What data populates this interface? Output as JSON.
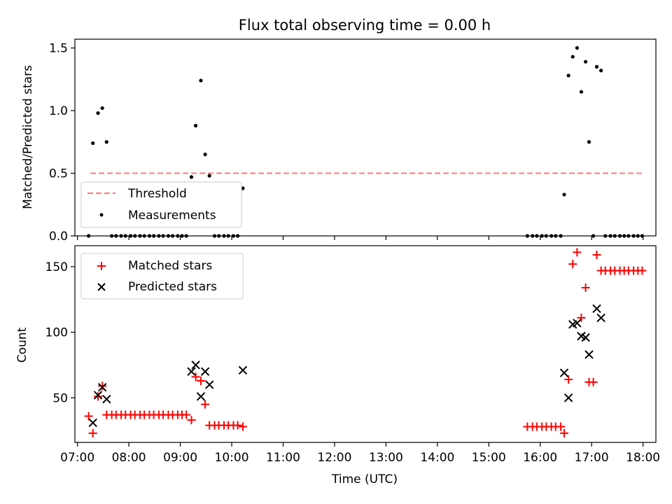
{
  "figure": {
    "title": "Flux total observing time = 0.00 h"
  },
  "chart_data": [
    {
      "type": "scatter",
      "ylabel": "Matched/Predicted stars",
      "ylim": [
        0,
        1.57
      ],
      "yticks": [
        "0.0",
        "0.5",
        "1.0",
        "1.5"
      ],
      "xlim": [
        "06:57",
        "18:15"
      ],
      "x_tick_times": [
        "07:00",
        "08:00",
        "09:00",
        "10:00",
        "11:00",
        "12:00",
        "13:00",
        "14:00",
        "15:00",
        "16:00",
        "17:00",
        "18:00"
      ],
      "x_tick_labels_shown": false,
      "grid": false,
      "legend_position": "lower-left",
      "threshold": {
        "name": "Threshold",
        "value": 0.5,
        "x_range": [
          "07:15",
          "18:00"
        ],
        "color": "#ff7777",
        "style": "dashed"
      },
      "series": [
        {
          "name": "Measurements",
          "marker": "dot",
          "color": "#000000",
          "points": [
            [
              "07:13",
              0.0
            ],
            [
              "07:18",
              0.74
            ],
            [
              "07:24",
              0.98
            ],
            [
              "07:29",
              1.02
            ],
            [
              "07:34",
              0.75
            ],
            [
              "07:40",
              0.0
            ],
            [
              "07:45",
              0.0
            ],
            [
              "07:51",
              0.0
            ],
            [
              "07:56",
              0.0
            ],
            [
              "08:02",
              0.0
            ],
            [
              "08:07",
              0.0
            ],
            [
              "08:13",
              0.0
            ],
            [
              "08:18",
              0.0
            ],
            [
              "08:24",
              0.0
            ],
            [
              "08:29",
              0.0
            ],
            [
              "08:35",
              0.0
            ],
            [
              "08:40",
              0.0
            ],
            [
              "08:46",
              0.0
            ],
            [
              "08:51",
              0.0
            ],
            [
              "08:57",
              0.0
            ],
            [
              "09:02",
              0.0
            ],
            [
              "09:07",
              0.0
            ],
            [
              "09:13",
              0.47
            ],
            [
              "09:18",
              0.88
            ],
            [
              "09:24",
              1.24
            ],
            [
              "09:29",
              0.65
            ],
            [
              "09:34",
              0.48
            ],
            [
              "09:40",
              0.0
            ],
            [
              "09:45",
              0.0
            ],
            [
              "09:51",
              0.0
            ],
            [
              "09:56",
              0.0
            ],
            [
              "10:02",
              0.0
            ],
            [
              "10:07",
              0.0
            ],
            [
              "10:13",
              0.38
            ],
            [
              "15:45",
              0.0
            ],
            [
              "15:51",
              0.0
            ],
            [
              "15:56",
              0.0
            ],
            [
              "16:02",
              0.0
            ],
            [
              "16:07",
              0.0
            ],
            [
              "16:13",
              0.0
            ],
            [
              "16:18",
              0.0
            ],
            [
              "16:24",
              0.0
            ],
            [
              "16:28",
              0.33
            ],
            [
              "16:33",
              1.28
            ],
            [
              "16:38",
              1.43
            ],
            [
              "16:43",
              1.5
            ],
            [
              "16:48",
              1.15
            ],
            [
              "16:53",
              1.39
            ],
            [
              "16:57",
              0.75
            ],
            [
              "17:02",
              0.0
            ],
            [
              "17:06",
              1.35
            ],
            [
              "17:11",
              1.32
            ],
            [
              "17:16",
              0.0
            ],
            [
              "17:22",
              0.0
            ],
            [
              "17:27",
              0.0
            ],
            [
              "17:33",
              0.0
            ],
            [
              "17:38",
              0.0
            ],
            [
              "17:43",
              0.0
            ],
            [
              "17:49",
              0.0
            ],
            [
              "17:54",
              0.0
            ],
            [
              "17:59",
              0.0
            ]
          ]
        }
      ]
    },
    {
      "type": "scatter",
      "xlabel": "Time (UTC)",
      "ylabel": "Count",
      "ylim": [
        16,
        166
      ],
      "yticks": [
        "50",
        "100",
        "150"
      ],
      "xlim": [
        "06:57",
        "18:15"
      ],
      "x_tick_times": [
        "07:00",
        "08:00",
        "09:00",
        "10:00",
        "11:00",
        "12:00",
        "13:00",
        "14:00",
        "15:00",
        "16:00",
        "17:00",
        "18:00"
      ],
      "x_tick_labels": [
        "07:00",
        "08:00",
        "09:00",
        "10:00",
        "11:00",
        "12:00",
        "13:00",
        "14:00",
        "15:00",
        "16:00",
        "17:00",
        "18:00"
      ],
      "grid": false,
      "legend_position": "upper-left",
      "series": [
        {
          "name": "Matched stars",
          "marker": "plus",
          "color": "#ff0000",
          "points": [
            [
              "07:13",
              36
            ],
            [
              "07:18",
              23
            ],
            [
              "07:24",
              51
            ],
            [
              "07:29",
              59
            ],
            [
              "07:34",
              37
            ],
            [
              "07:40",
              37
            ],
            [
              "07:45",
              37
            ],
            [
              "07:51",
              37
            ],
            [
              "07:56",
              37
            ],
            [
              "08:02",
              37
            ],
            [
              "08:07",
              37
            ],
            [
              "08:13",
              37
            ],
            [
              "08:18",
              37
            ],
            [
              "08:24",
              37
            ],
            [
              "08:29",
              37
            ],
            [
              "08:35",
              37
            ],
            [
              "08:40",
              37
            ],
            [
              "08:46",
              37
            ],
            [
              "08:51",
              37
            ],
            [
              "08:57",
              37
            ],
            [
              "09:02",
              37
            ],
            [
              "09:07",
              37
            ],
            [
              "09:13",
              33
            ],
            [
              "09:18",
              66
            ],
            [
              "09:24",
              63
            ],
            [
              "09:29",
              45
            ],
            [
              "09:34",
              29
            ],
            [
              "09:40",
              29
            ],
            [
              "09:45",
              29
            ],
            [
              "09:51",
              29
            ],
            [
              "09:56",
              29
            ],
            [
              "10:02",
              29
            ],
            [
              "10:07",
              29
            ],
            [
              "10:13",
              28
            ],
            [
              "15:45",
              28
            ],
            [
              "15:51",
              28
            ],
            [
              "15:56",
              28
            ],
            [
              "16:02",
              28
            ],
            [
              "16:07",
              28
            ],
            [
              "16:13",
              28
            ],
            [
              "16:18",
              28
            ],
            [
              "16:24",
              28
            ],
            [
              "16:28",
              23
            ],
            [
              "16:33",
              64
            ],
            [
              "16:38",
              152
            ],
            [
              "16:43",
              161
            ],
            [
              "16:48",
              111
            ],
            [
              "16:53",
              134
            ],
            [
              "16:57",
              62
            ],
            [
              "17:02",
              62
            ],
            [
              "17:06",
              159
            ],
            [
              "17:11",
              147
            ],
            [
              "17:16",
              147
            ],
            [
              "17:22",
              147
            ],
            [
              "17:27",
              147
            ],
            [
              "17:33",
              147
            ],
            [
              "17:38",
              147
            ],
            [
              "17:43",
              147
            ],
            [
              "17:49",
              147
            ],
            [
              "17:54",
              147
            ],
            [
              "17:59",
              147
            ]
          ]
        },
        {
          "name": "Predicted stars",
          "marker": "cross",
          "color": "#000000",
          "points": [
            [
              "07:18",
              31
            ],
            [
              "07:24",
              52
            ],
            [
              "07:29",
              58
            ],
            [
              "07:34",
              49
            ],
            [
              "09:13",
              70
            ],
            [
              "09:18",
              75
            ],
            [
              "09:24",
              51
            ],
            [
              "09:29",
              70
            ],
            [
              "09:34",
              60
            ],
            [
              "10:13",
              71
            ],
            [
              "16:28",
              69
            ],
            [
              "16:33",
              50
            ],
            [
              "16:38",
              106
            ],
            [
              "16:43",
              107
            ],
            [
              "16:48",
              97
            ],
            [
              "16:53",
              96
            ],
            [
              "16:57",
              83
            ],
            [
              "17:06",
              118
            ],
            [
              "17:11",
              111
            ]
          ]
        }
      ]
    }
  ]
}
